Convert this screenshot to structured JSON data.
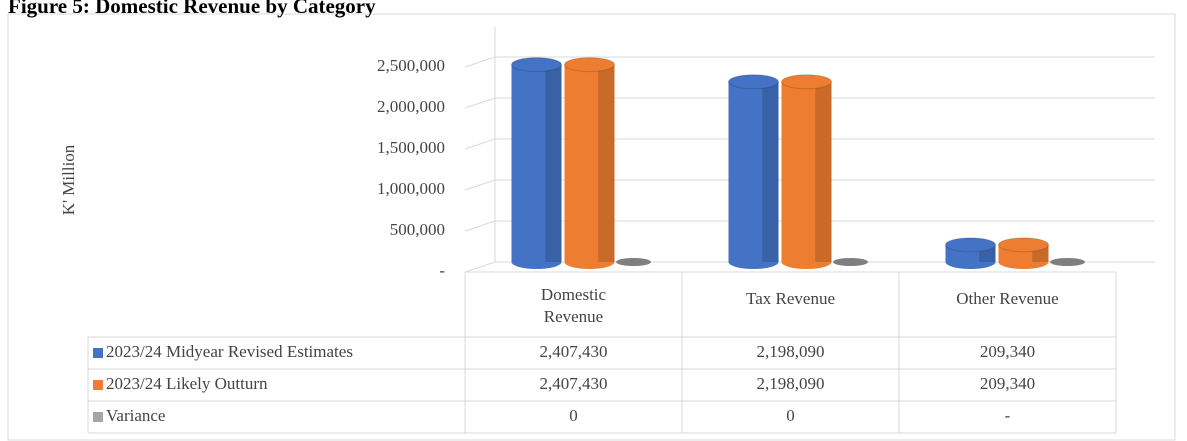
{
  "chart_data": {
    "type": "bar3d",
    "title": "Figure 5: Domestic Revenue by Category",
    "y_label": "K' Million",
    "categories": [
      "Domestic Revenue",
      "Tax Revenue",
      "Other Revenue"
    ],
    "series": [
      {
        "name": "2023/24 Midyear Revised Estimates",
        "color": "#4472c4",
        "values": [
          2407430,
          2198090,
          209340
        ],
        "value_labels": [
          "2,407,430",
          "2,198,090",
          "209,340"
        ]
      },
      {
        "name": "2023/24 Likely Outturn",
        "color": "#ed7d31",
        "values": [
          2407430,
          2198090,
          209340
        ],
        "value_labels": [
          "2,407,430",
          "2,198,090",
          "209,340"
        ]
      },
      {
        "name": "Variance",
        "color": "#a5a5a5",
        "values": [
          0,
          0,
          0
        ],
        "value_labels": [
          "0",
          "0",
          "-"
        ]
      }
    ],
    "ylim": [
      0,
      2500000
    ],
    "yticks": [
      {
        "value": 0,
        "label": "-"
      },
      {
        "value": 500000,
        "label": "500,000"
      },
      {
        "value": 1000000,
        "label": "1,000,000"
      },
      {
        "value": 1500000,
        "label": "1,500,000"
      },
      {
        "value": 2000000,
        "label": "2,000,000"
      },
      {
        "value": 2500000,
        "label": "2,500,000"
      }
    ],
    "grid": true,
    "legend": "table"
  }
}
